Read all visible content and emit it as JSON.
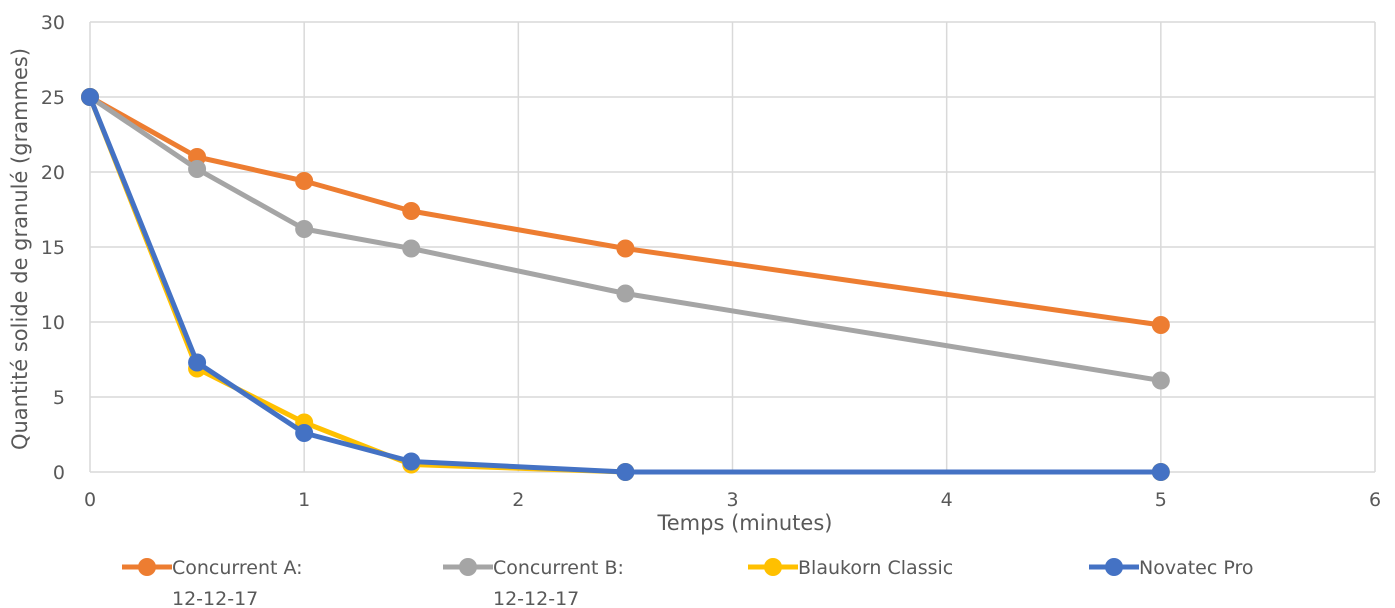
{
  "chart_data": {
    "type": "line",
    "title": "",
    "xlabel": "Temps (minutes)",
    "ylabel": "Quantité solide de granulé (grammes)",
    "xlim": [
      0,
      6
    ],
    "ylim": [
      0,
      30
    ],
    "x_ticks": [
      "0",
      "1",
      "2",
      "3",
      "4",
      "5",
      "6"
    ],
    "y_ticks": [
      "0",
      "5",
      "10",
      "15",
      "20",
      "25",
      "30"
    ],
    "grid": true,
    "legend_position": "bottom",
    "series": [
      {
        "name": "Concurrent A:",
        "name_line2": "12-12-17",
        "color": "#ED7D31",
        "x": [
          0,
          0.5,
          1,
          1.5,
          2.5,
          5
        ],
        "y": [
          25,
          21,
          19.4,
          17.4,
          14.9,
          9.8
        ]
      },
      {
        "name": "Concurrent B:",
        "name_line2": "12-12-17",
        "color": "#A5A5A5",
        "x": [
          0,
          0.5,
          1,
          1.5,
          2.5,
          5
        ],
        "y": [
          25,
          20.2,
          16.2,
          14.9,
          11.9,
          6.1
        ]
      },
      {
        "name": "Blaukorn Classic",
        "name_line2": "",
        "color": "#FFC000",
        "x": [
          0,
          0.5,
          1,
          1.5,
          2.5,
          5
        ],
        "y": [
          25,
          6.9,
          3.3,
          0.5,
          0,
          0
        ]
      },
      {
        "name": "Novatec Pro",
        "name_line2": "",
        "color": "#4472C4",
        "x": [
          0,
          0.5,
          1,
          1.5,
          2.5,
          5
        ],
        "y": [
          25,
          7.3,
          2.6,
          0.7,
          0,
          0
        ]
      }
    ]
  }
}
